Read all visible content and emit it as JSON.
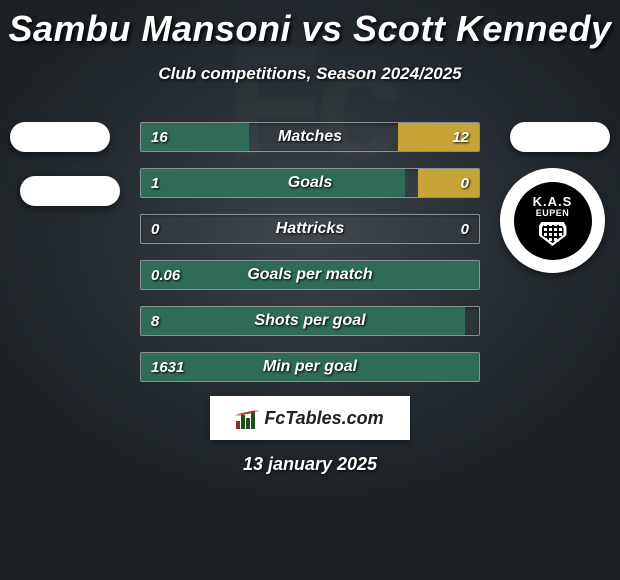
{
  "title": "Sambu Mansoni vs Scott Kennedy",
  "subtitle": "Club competitions, Season 2024/2025",
  "date": "13 january 2025",
  "brand": "FcTables.com",
  "away_club": {
    "top": "K.A.S",
    "name": "EUPEN"
  },
  "colors": {
    "bar_left_fill": "#2f6b57",
    "bar_right_fill": "#c7a437",
    "bar_border": "rgba(255,255,255,0.45)",
    "title_text": "#ffffff",
    "bg_center": "#3a4248",
    "bg_edge": "#1a2024"
  },
  "rows": [
    {
      "label": "Matches",
      "left_val": "16",
      "right_val": "12",
      "left_pct": 32,
      "right_pct": 24
    },
    {
      "label": "Goals",
      "left_val": "1",
      "right_val": "0",
      "left_pct": 78,
      "right_pct": 18
    },
    {
      "label": "Hattricks",
      "left_val": "0",
      "right_val": "0",
      "left_pct": 0,
      "right_pct": 0
    },
    {
      "label": "Goals per match",
      "left_val": "0.06",
      "right_val": "",
      "left_pct": 100,
      "right_pct": 0
    },
    {
      "label": "Shots per goal",
      "left_val": "8",
      "right_val": "",
      "left_pct": 96,
      "right_pct": 0
    },
    {
      "label": "Min per goal",
      "left_val": "1631",
      "right_val": "",
      "left_pct": 100,
      "right_pct": 0
    }
  ]
}
